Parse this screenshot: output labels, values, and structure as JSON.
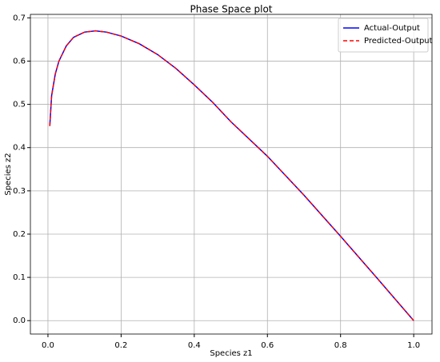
{
  "chart_data": {
    "type": "line",
    "title": "Phase Space plot",
    "x_label": "Species z1",
    "y_label": "Species z2",
    "x": [
      0.005,
      0.01,
      0.02,
      0.03,
      0.05,
      0.07,
      0.1,
      0.13,
      0.16,
      0.2,
      0.25,
      0.3,
      0.35,
      0.4,
      0.45,
      0.5,
      0.6,
      0.7,
      0.8,
      0.9,
      1.0
    ],
    "series": [
      {
        "name": "Actual-Output",
        "color": "#0000ff",
        "style": "solid",
        "values": [
          0.45,
          0.52,
          0.57,
          0.6,
          0.635,
          0.655,
          0.667,
          0.67,
          0.667,
          0.658,
          0.64,
          0.615,
          0.583,
          0.545,
          0.505,
          0.46,
          0.38,
          0.29,
          0.195,
          0.098,
          0.0
        ]
      },
      {
        "name": "Predicted-Output",
        "color": "#ff0000",
        "style": "dashed",
        "values": [
          0.45,
          0.52,
          0.57,
          0.6,
          0.635,
          0.655,
          0.667,
          0.67,
          0.667,
          0.658,
          0.64,
          0.615,
          0.583,
          0.545,
          0.505,
          0.46,
          0.38,
          0.29,
          0.195,
          0.098,
          0.0
        ]
      }
    ],
    "xlim": [
      -0.048,
      1.05
    ],
    "ylim": [
      -0.031,
      0.708
    ],
    "xticks": [
      {
        "value": 0,
        "label": "0.0"
      },
      0.2,
      0.4,
      0.6,
      0.8,
      {
        "value": 1,
        "label": "1.0"
      }
    ],
    "yticks": [
      {
        "value": 0,
        "label": "0.0"
      },
      0.1,
      0.2,
      0.3,
      0.4,
      0.5,
      0.6,
      0.7
    ],
    "grid": true,
    "legend": "upper right"
  }
}
